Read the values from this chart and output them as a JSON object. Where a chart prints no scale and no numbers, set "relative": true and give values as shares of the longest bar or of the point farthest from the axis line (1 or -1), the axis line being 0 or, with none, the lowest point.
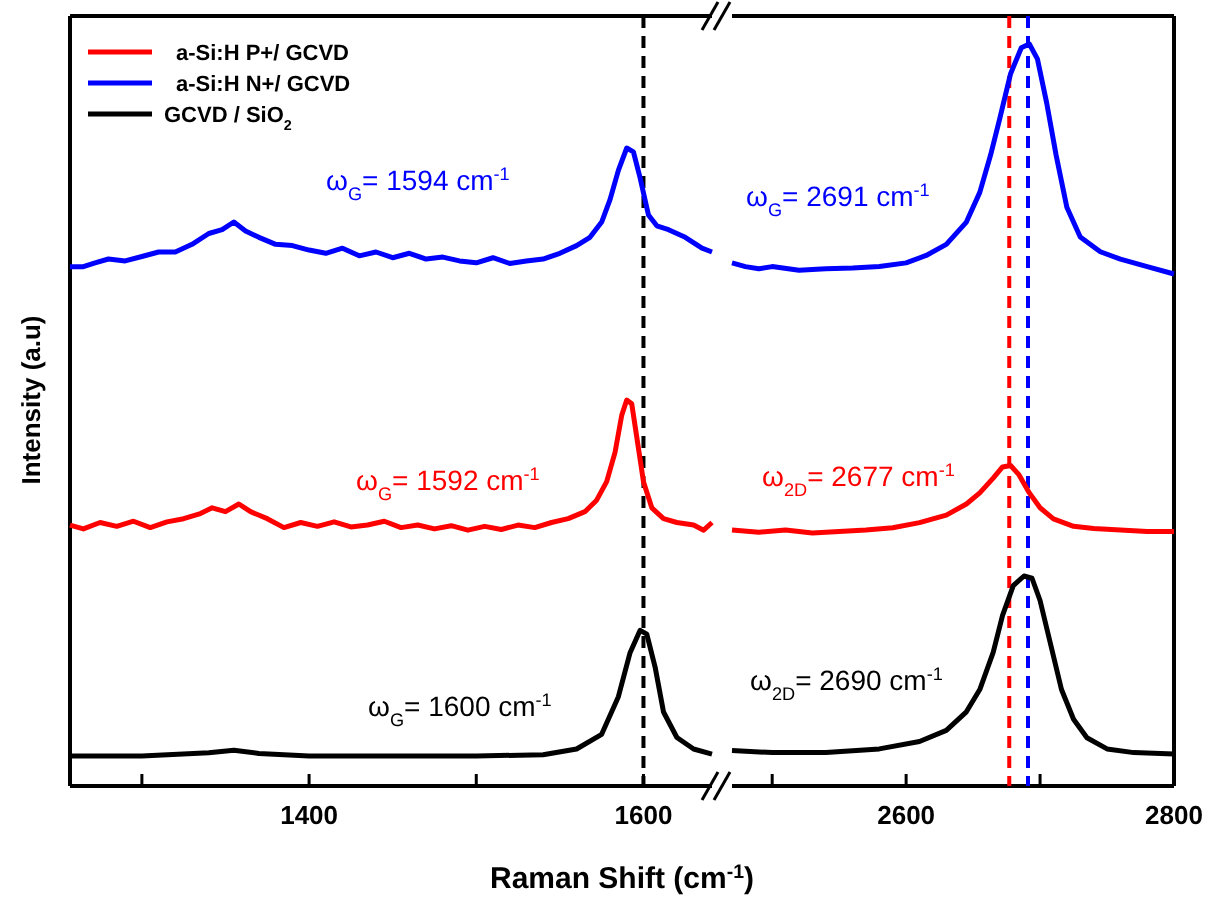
{
  "chart_data": [
    {
      "type": "line",
      "relative": true,
      "ylabel": "Intensity (a.u)",
      "legend": "top left",
      "xlim": [
        1257,
        1641
      ],
      "xticks": [
        {
          "value": 1300,
          "label": null
        },
        1400,
        {
          "value": 1500,
          "label": null
        },
        1600
      ],
      "series": [
        {
          "name": "a-Si:H P+/ GCVD",
          "color": "#ff0000",
          "x": [
            1257,
            1265,
            1275,
            1285,
            1295,
            1305,
            1315,
            1325,
            1335,
            1342,
            1350,
            1358,
            1365,
            1375,
            1385,
            1395,
            1405,
            1415,
            1425,
            1435,
            1445,
            1455,
            1465,
            1475,
            1485,
            1495,
            1505,
            1515,
            1525,
            1535,
            1545,
            1555,
            1565,
            1572,
            1578,
            1583,
            1587,
            1590,
            1593,
            1596,
            1600,
            1605,
            1612,
            1620,
            1630,
            1636,
            1641
          ],
          "values": [
            0.409,
            0.403,
            0.413,
            0.407,
            0.415,
            0.405,
            0.414,
            0.419,
            0.427,
            0.436,
            0.43,
            0.442,
            0.43,
            0.419,
            0.405,
            0.413,
            0.407,
            0.414,
            0.406,
            0.409,
            0.415,
            0.405,
            0.409,
            0.403,
            0.408,
            0.401,
            0.407,
            0.402,
            0.409,
            0.405,
            0.413,
            0.419,
            0.43,
            0.448,
            0.477,
            0.523,
            0.581,
            0.605,
            0.599,
            0.547,
            0.477,
            0.436,
            0.419,
            0.413,
            0.409,
            0.401,
            0.413
          ]
        },
        {
          "name": "a-Si:H N+/ GCVD",
          "color": "#0000ff",
          "x": [
            1257,
            1265,
            1272,
            1280,
            1290,
            1300,
            1310,
            1320,
            1330,
            1340,
            1348,
            1355,
            1362,
            1370,
            1380,
            1390,
            1400,
            1410,
            1420,
            1430,
            1440,
            1450,
            1460,
            1470,
            1480,
            1490,
            1500,
            1510,
            1520,
            1530,
            1540,
            1550,
            1560,
            1568,
            1575,
            1580,
            1585,
            1590,
            1594,
            1598,
            1603,
            1608,
            1615,
            1625,
            1635,
            1641
          ],
          "values": [
            0.814,
            0.814,
            0.82,
            0.826,
            0.823,
            0.83,
            0.837,
            0.837,
            0.849,
            0.866,
            0.872,
            0.884,
            0.87,
            0.86,
            0.849,
            0.847,
            0.84,
            0.835,
            0.843,
            0.831,
            0.837,
            0.828,
            0.835,
            0.826,
            0.829,
            0.823,
            0.82,
            0.828,
            0.819,
            0.823,
            0.826,
            0.835,
            0.847,
            0.86,
            0.884,
            0.919,
            0.965,
            1,
            0.994,
            0.953,
            0.895,
            0.878,
            0.872,
            0.86,
            0.843,
            0.837
          ]
        },
        {
          "name": "GCVD / SiO$_{2}$",
          "color": "#000000",
          "x": [
            1257,
            1300,
            1340,
            1355,
            1370,
            1400,
            1450,
            1500,
            1540,
            1560,
            1575,
            1585,
            1592,
            1598,
            1602,
            1607,
            1612,
            1620,
            1630,
            1641
          ],
          "values": [
            0.047,
            0.047,
            0.052,
            0.056,
            0.051,
            0.047,
            0.047,
            0.047,
            0.049,
            0.058,
            0.081,
            0.14,
            0.209,
            0.244,
            0.238,
            0.186,
            0.116,
            0.076,
            0.058,
            0.05
          ]
        }
      ],
      "ref_lines": [
        {
          "axis": "x",
          "value": 1600,
          "color": "#000000",
          "line_style": "dashed"
        }
      ],
      "annotations": [
        "ω$_{G}$= 1594 cm$^{-1}$",
        "ω$_{G}$= 1592 cm$^{-1}$",
        "ω$_{G}$= 1600 cm$^{-1}$"
      ]
    },
    {
      "type": "line",
      "relative": true,
      "xlabel": "Raman Shift (cm$^{-1}$)",
      "xlim": [
        2470,
        2800
      ],
      "xticks": [
        {
          "value": 2500,
          "label": null
        },
        2600,
        {
          "value": 2700,
          "label": null
        },
        2800
      ],
      "series": [
        {
          "color": "#ff0000",
          "x": [
            2470,
            2490,
            2510,
            2530,
            2550,
            2570,
            2590,
            2610,
            2630,
            2645,
            2655,
            2665,
            2672,
            2678,
            2684,
            2692,
            2700,
            2710,
            2725,
            2740,
            2760,
            2780,
            2800
          ],
          "values": [
            0.345,
            0.342,
            0.345,
            0.341,
            0.343,
            0.345,
            0.348,
            0.355,
            0.365,
            0.38,
            0.395,
            0.415,
            0.43,
            0.432,
            0.42,
            0.395,
            0.375,
            0.36,
            0.35,
            0.347,
            0.345,
            0.343,
            0.343
          ]
        },
        {
          "color": "#0000ff",
          "x": [
            2470,
            2480,
            2490,
            2500,
            2520,
            2540,
            2560,
            2580,
            2600,
            2615,
            2630,
            2645,
            2655,
            2663,
            2670,
            2678,
            2686,
            2692,
            2698,
            2705,
            2712,
            2720,
            2730,
            2745,
            2760,
            2780,
            2800
          ],
          "values": [
            0.705,
            0.7,
            0.697,
            0.7,
            0.695,
            0.697,
            0.698,
            0.7,
            0.705,
            0.715,
            0.73,
            0.76,
            0.8,
            0.85,
            0.9,
            0.96,
            0.995,
            1,
            0.98,
            0.92,
            0.85,
            0.78,
            0.74,
            0.72,
            0.71,
            0.7,
            0.69
          ]
        },
        {
          "color": "#000000",
          "x": [
            2470,
            2500,
            2540,
            2580,
            2610,
            2630,
            2645,
            2655,
            2665,
            2672,
            2680,
            2688,
            2694,
            2700,
            2708,
            2716,
            2725,
            2735,
            2750,
            2770,
            2800
          ],
          "values": [
            0.048,
            0.045,
            0.045,
            0.05,
            0.06,
            0.075,
            0.1,
            0.13,
            0.18,
            0.23,
            0.27,
            0.283,
            0.28,
            0.25,
            0.19,
            0.13,
            0.09,
            0.065,
            0.05,
            0.045,
            0.043
          ]
        }
      ],
      "ref_lines": [
        {
          "axis": "x",
          "value": 2677,
          "color": "#ff0000",
          "line_style": "dashed"
        },
        {
          "axis": "x",
          "value": 2691,
          "color": "#0000ff",
          "line_style": "dashed"
        }
      ],
      "annotations": [
        "ω$_{G}$= 2691 cm$^{-1}$",
        "ω$_{2D}$= 2677 cm$^{-1}$",
        "ω$_{2D}$= 2690 cm$^{-1}$"
      ]
    }
  ]
}
